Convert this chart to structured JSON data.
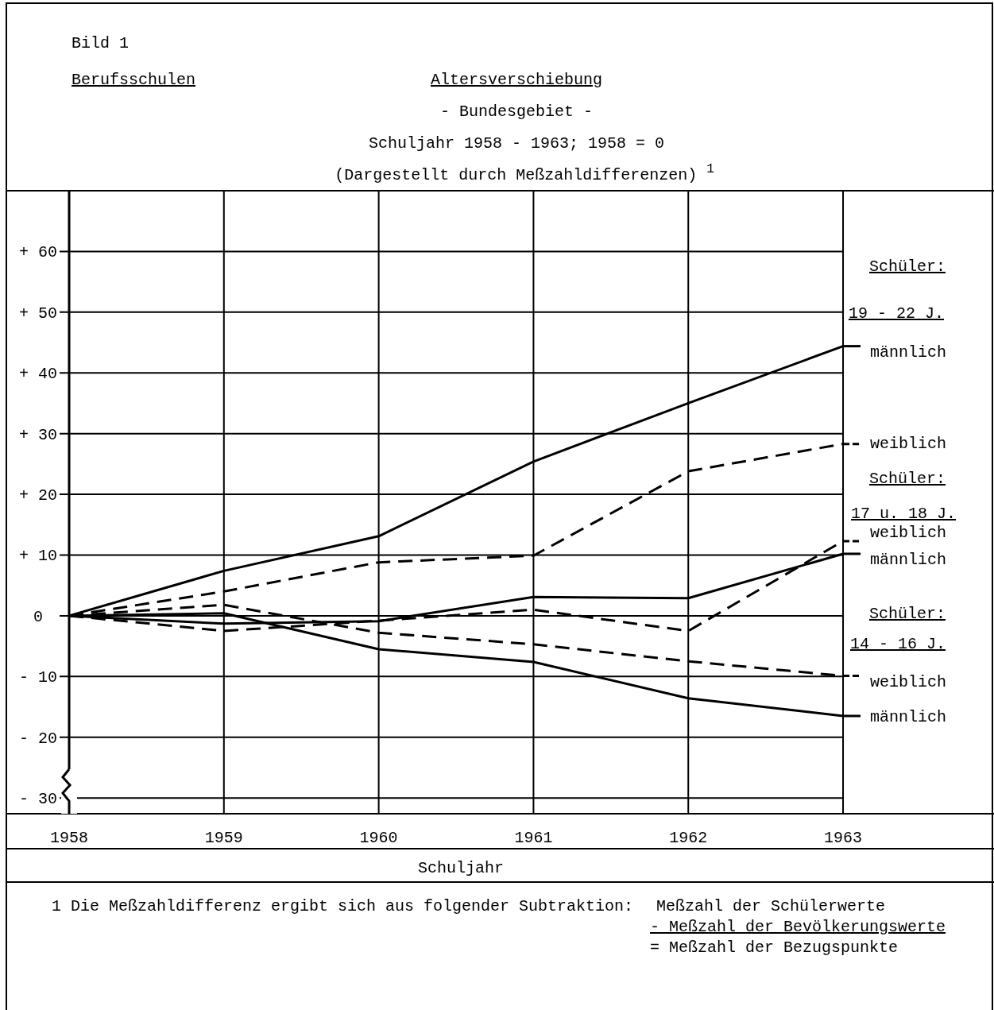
{
  "chart_data": {
    "type": "line",
    "title": "Altersverschiebung",
    "subtitle": "- Bundesgebiet -",
    "xlabel": "Schuljahr",
    "annotations": [
      "Bild  1",
      "Berufsschulen",
      "Schuljahr 1958 - 1963; 1958 = 0",
      "(Dargestellt durch Meßzahldifferenzen) $^{1}$",
      "Schüler:",
      "19 - 22 J.",
      "Schüler:",
      "17 u. 18 J.",
      "Schüler:",
      "14 - 16 J.",
      "1  Die Meßzahldifferenz ergibt sich aus folgender Subtraktion:",
      "Meßzahl der Schülerwerte",
      "- Meßzahl der Bevölkerungswerte",
      "= Meßzahl der Bezugspunkte"
    ],
    "x": [
      1958,
      1959,
      1960,
      1961,
      1962,
      1963
    ],
    "series": [
      {
        "name": "männlich",
        "color": "#000000",
        "line_style": "solid",
        "values": [
          0,
          7.4,
          13.1,
          25.4,
          35,
          44.4
        ]
      },
      {
        "name": "weiblich",
        "color": "#000000",
        "line_style": "dashed",
        "values": [
          0,
          4,
          8.8,
          9.9,
          23.8,
          28.3
        ]
      },
      {
        "name": "weiblich",
        "color": "#000000",
        "line_style": "dashed",
        "values": [
          0,
          -2.5,
          -0.8,
          1,
          -2.5,
          12.3
        ]
      },
      {
        "name": "männlich",
        "color": "#000000",
        "line_style": "solid",
        "values": [
          0,
          -1.3,
          -0.9,
          3.1,
          2.9,
          10.2
        ]
      },
      {
        "name": "weiblich",
        "color": "#000000",
        "line_style": "dashed",
        "values": [
          0,
          1.8,
          -2.8,
          -4.7,
          -7.5,
          -9.9
        ]
      },
      {
        "name": "männlich",
        "color": "#000000",
        "line_style": "solid",
        "values": [
          0,
          0.4,
          -5.5,
          -7.6,
          -13.6,
          -16.5
        ]
      }
    ],
    "xlim": [
      1958,
      1963.97
    ],
    "ylim": [
      -32.6,
      70
    ],
    "xticks": [
      1958,
      1959,
      1960,
      1961,
      1962,
      1963
    ],
    "yticks": [
      {
        "value": -30,
        "label": "- 30"
      },
      {
        "value": -20,
        "label": "- 20"
      },
      {
        "value": -10,
        "label": "- 10"
      },
      0,
      {
        "value": 10,
        "label": "+ 10"
      },
      {
        "value": 20,
        "label": "+ 20"
      },
      {
        "value": 30,
        "label": "+ 30"
      },
      {
        "value": 40,
        "label": "+ 40"
      },
      {
        "value": 50,
        "label": "+ 50"
      },
      {
        "value": 60,
        "label": "+ 60"
      }
    ],
    "grid": true,
    "legend": "right",
    "marker": "none"
  }
}
